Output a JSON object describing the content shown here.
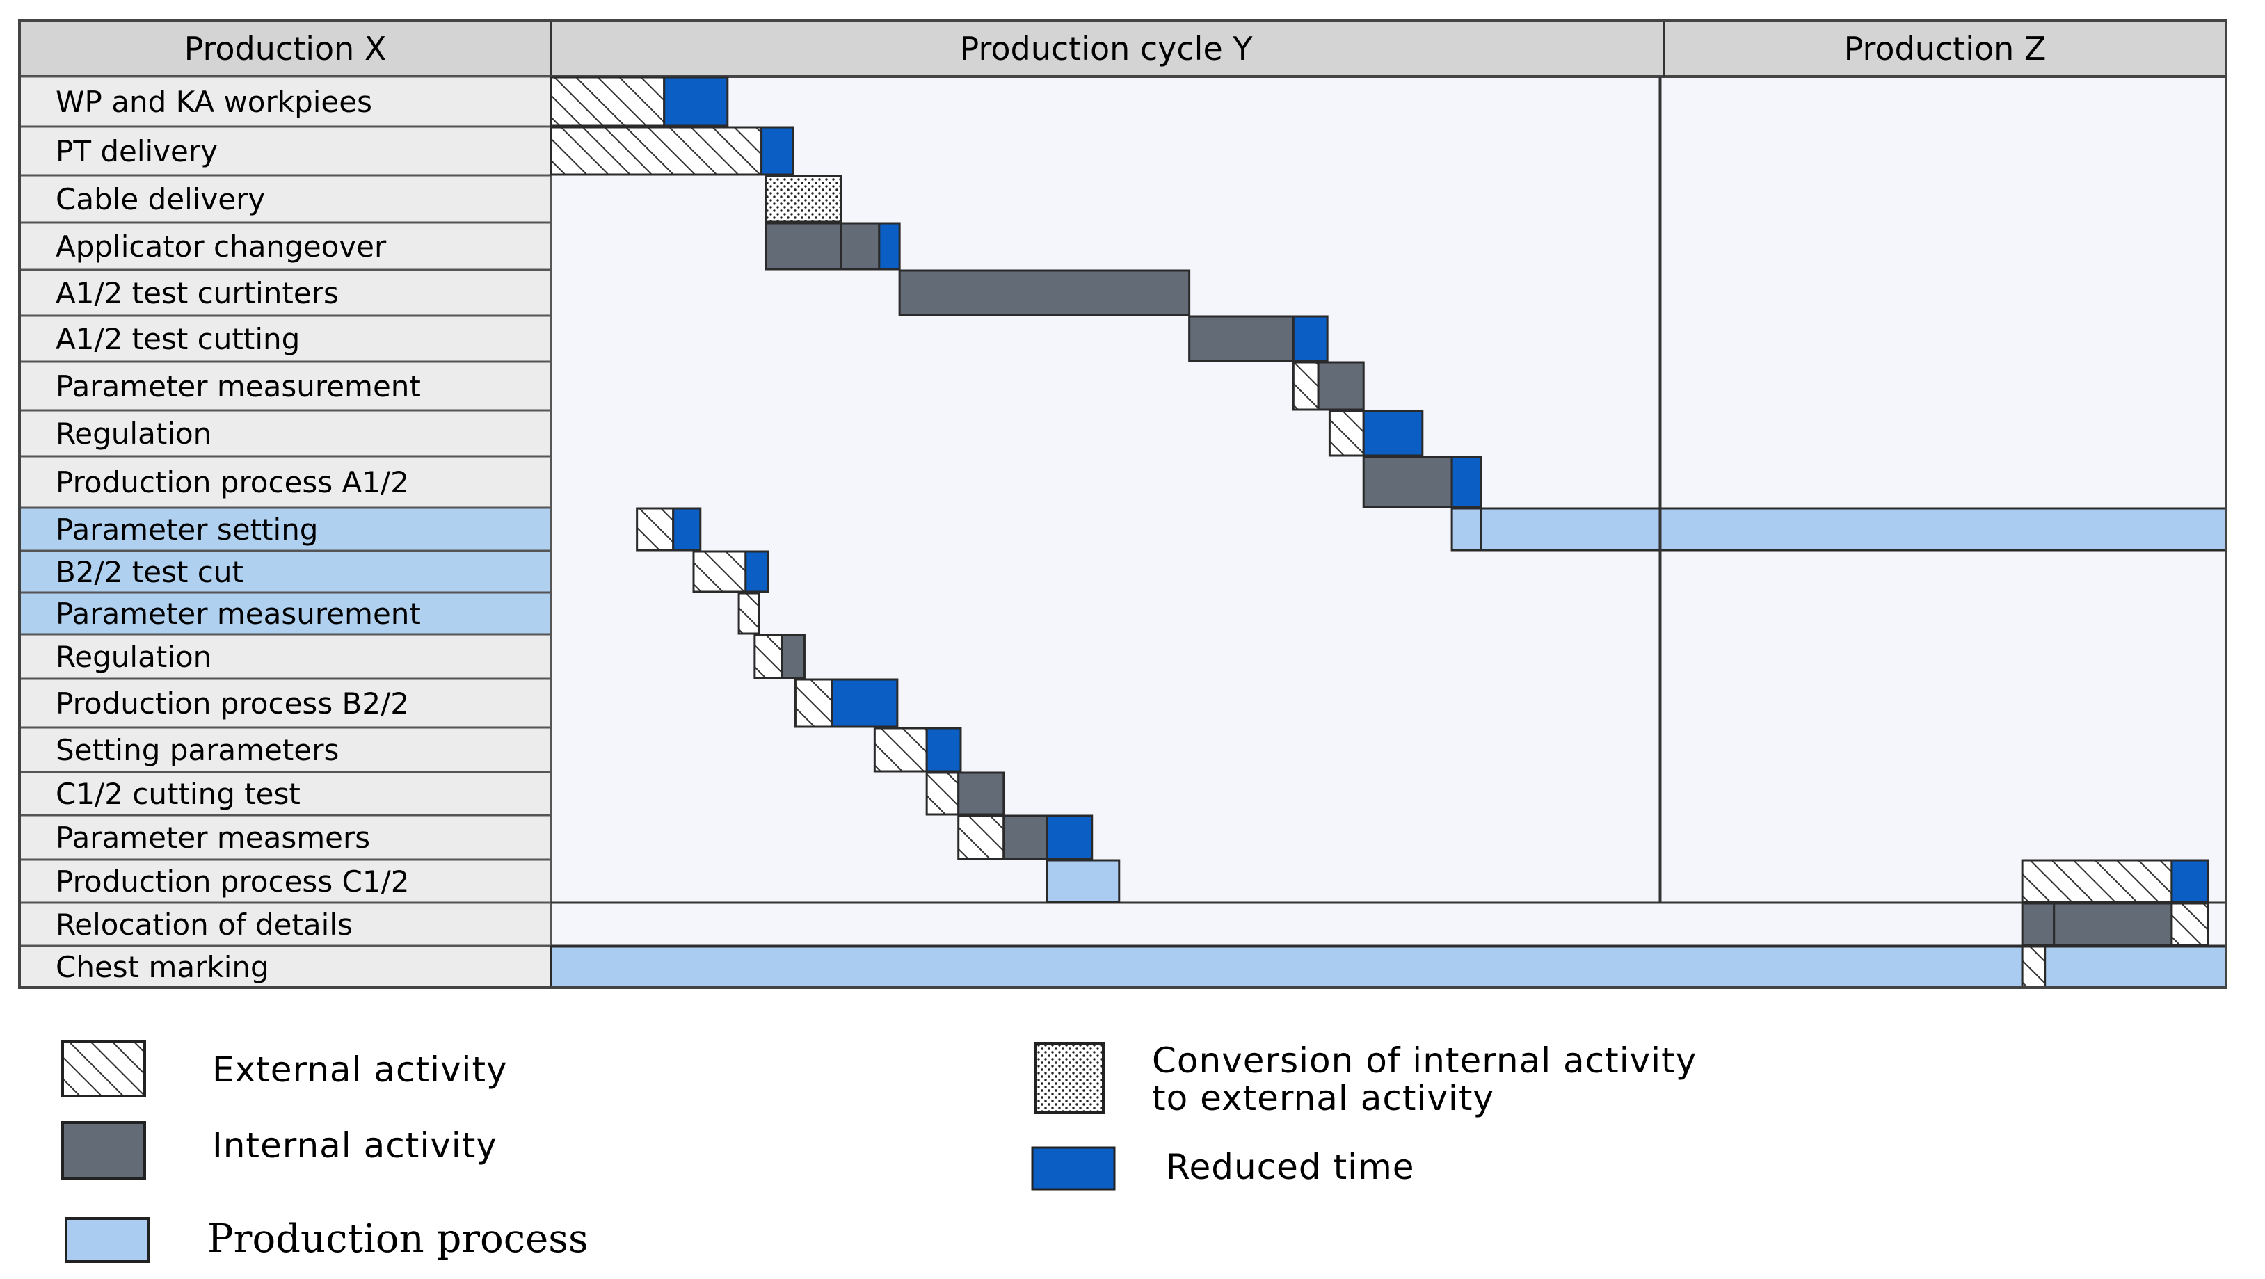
{
  "chart_data": {
    "type": "gantt",
    "header": {
      "label_column": "Production X",
      "middle": "Production cycle Y",
      "right": "Production Z"
    },
    "rows": [
      {
        "label": "WP and KA workpiees",
        "highlight": false
      },
      {
        "label": "PT delivery",
        "highlight": false
      },
      {
        "label": "Cable delivery",
        "highlight": false
      },
      {
        "label": "Applicator changeover",
        "highlight": false
      },
      {
        "label": "A1/2 test curtinters",
        "highlight": false
      },
      {
        "label": "A1/2 test cutting",
        "highlight": false
      },
      {
        "label": "Parameter measurement",
        "highlight": false
      },
      {
        "label": "Regulation",
        "highlight": false
      },
      {
        "label": "Production process A1/2",
        "highlight": false
      },
      {
        "label": "Parameter setting",
        "highlight": true
      },
      {
        "label": "B2/2 test cut",
        "highlight": true
      },
      {
        "label": "Parameter measurement",
        "highlight": true
      },
      {
        "label": "Regulation",
        "highlight": false
      },
      {
        "label": "Production process B2/2",
        "highlight": false
      },
      {
        "label": "Setting parameters",
        "highlight": false
      },
      {
        "label": "C1/2 cutting test",
        "highlight": false
      },
      {
        "label": "Parameter measmers",
        "highlight": false
      },
      {
        "label": "Production process C1/2",
        "highlight": false
      },
      {
        "label": "Relocation of details",
        "highlight": false
      },
      {
        "label": "Chest marking",
        "highlight": false
      }
    ],
    "bars": [
      {
        "row": 0,
        "start": 0.0,
        "end": 5.0,
        "kind": "external"
      },
      {
        "row": 0,
        "start": 5.0,
        "end": 7.8,
        "kind": "reduced"
      },
      {
        "row": 1,
        "start": 0.0,
        "end": 9.3,
        "kind": "external"
      },
      {
        "row": 1,
        "start": 9.3,
        "end": 10.7,
        "kind": "reduced"
      },
      {
        "row": 2,
        "start": 9.5,
        "end": 12.8,
        "kind": "conversion"
      },
      {
        "row": 3,
        "start": 9.5,
        "end": 12.8,
        "kind": "internal"
      },
      {
        "row": 3,
        "start": 12.8,
        "end": 14.5,
        "kind": "internal"
      },
      {
        "row": 3,
        "start": 14.5,
        "end": 15.4,
        "kind": "reduced"
      },
      {
        "row": 4,
        "start": 15.4,
        "end": 28.2,
        "kind": "internal"
      },
      {
        "row": 5,
        "start": 28.2,
        "end": 32.8,
        "kind": "internal"
      },
      {
        "row": 5,
        "start": 32.8,
        "end": 34.3,
        "kind": "reduced"
      },
      {
        "row": 6,
        "start": 32.8,
        "end": 33.9,
        "kind": "external"
      },
      {
        "row": 6,
        "start": 33.9,
        "end": 35.9,
        "kind": "internal"
      },
      {
        "row": 7,
        "start": 34.4,
        "end": 35.9,
        "kind": "external"
      },
      {
        "row": 7,
        "start": 35.9,
        "end": 38.5,
        "kind": "reduced"
      },
      {
        "row": 8,
        "start": 35.9,
        "end": 39.8,
        "kind": "internal"
      },
      {
        "row": 8,
        "start": 39.8,
        "end": 41.1,
        "kind": "reduced"
      },
      {
        "row": 9,
        "start": 3.8,
        "end": 5.4,
        "kind": "external"
      },
      {
        "row": 9,
        "start": 5.4,
        "end": 6.6,
        "kind": "reduced"
      },
      {
        "row": 9,
        "start": 39.8,
        "end": 41.1,
        "kind": "production"
      },
      {
        "row": 9,
        "start": 41.1,
        "end": 74.0,
        "kind": "production"
      },
      {
        "row": 10,
        "start": 6.3,
        "end": 8.6,
        "kind": "external"
      },
      {
        "row": 10,
        "start": 8.6,
        "end": 9.6,
        "kind": "reduced"
      },
      {
        "row": 11,
        "start": 8.3,
        "end": 9.2,
        "kind": "external"
      },
      {
        "row": 12,
        "start": 9.0,
        "end": 10.2,
        "kind": "external"
      },
      {
        "row": 12,
        "start": 10.2,
        "end": 11.2,
        "kind": "internal"
      },
      {
        "row": 13,
        "start": 10.8,
        "end": 12.4,
        "kind": "external"
      },
      {
        "row": 13,
        "start": 12.4,
        "end": 15.3,
        "kind": "reduced"
      },
      {
        "row": 14,
        "start": 14.3,
        "end": 16.6,
        "kind": "external"
      },
      {
        "row": 14,
        "start": 16.6,
        "end": 18.1,
        "kind": "reduced"
      },
      {
        "row": 15,
        "start": 16.6,
        "end": 18.0,
        "kind": "external"
      },
      {
        "row": 15,
        "start": 18.0,
        "end": 20.0,
        "kind": "internal"
      },
      {
        "row": 16,
        "start": 18.0,
        "end": 20.0,
        "kind": "external"
      },
      {
        "row": 16,
        "start": 20.0,
        "end": 21.9,
        "kind": "internal"
      },
      {
        "row": 16,
        "start": 21.9,
        "end": 23.9,
        "kind": "reduced"
      },
      {
        "row": 17,
        "start": 21.9,
        "end": 25.1,
        "kind": "production"
      },
      {
        "row": 17,
        "start": 65.0,
        "end": 71.6,
        "kind": "external"
      },
      {
        "row": 17,
        "start": 71.6,
        "end": 73.2,
        "kind": "reduced"
      },
      {
        "row": 18,
        "start": 65.0,
        "end": 66.4,
        "kind": "internal"
      },
      {
        "row": 18,
        "start": 66.4,
        "end": 71.6,
        "kind": "internal"
      },
      {
        "row": 18,
        "start": 71.6,
        "end": 73.2,
        "kind": "external"
      },
      {
        "row": 19,
        "start": 0.0,
        "end": 65.0,
        "kind": "production"
      },
      {
        "row": 19,
        "start": 65.0,
        "end": 66.0,
        "kind": "external"
      },
      {
        "row": 19,
        "start": 66.0,
        "end": 74.0,
        "kind": "production"
      }
    ],
    "phase_boundaries": [
      49.0
    ],
    "legend": [
      {
        "kind": "external",
        "label": "External activity"
      },
      {
        "kind": "internal",
        "label": "Internal activity"
      },
      {
        "kind": "production",
        "label": "Production process"
      },
      {
        "kind": "conversion",
        "label_lines": [
          "Conversion of internal activity",
          "to external activity"
        ]
      },
      {
        "kind": "reduced",
        "label": "Reduced time"
      }
    ],
    "colors": {
      "internal": "#636b77",
      "reduced": "#0b5fc4",
      "production": "#a9ccf0",
      "highlight_row": "#b0d0f0",
      "header": "#d4d4d4",
      "label_bg": "#ececec",
      "chart_bg": "#f5f6fb"
    }
  }
}
